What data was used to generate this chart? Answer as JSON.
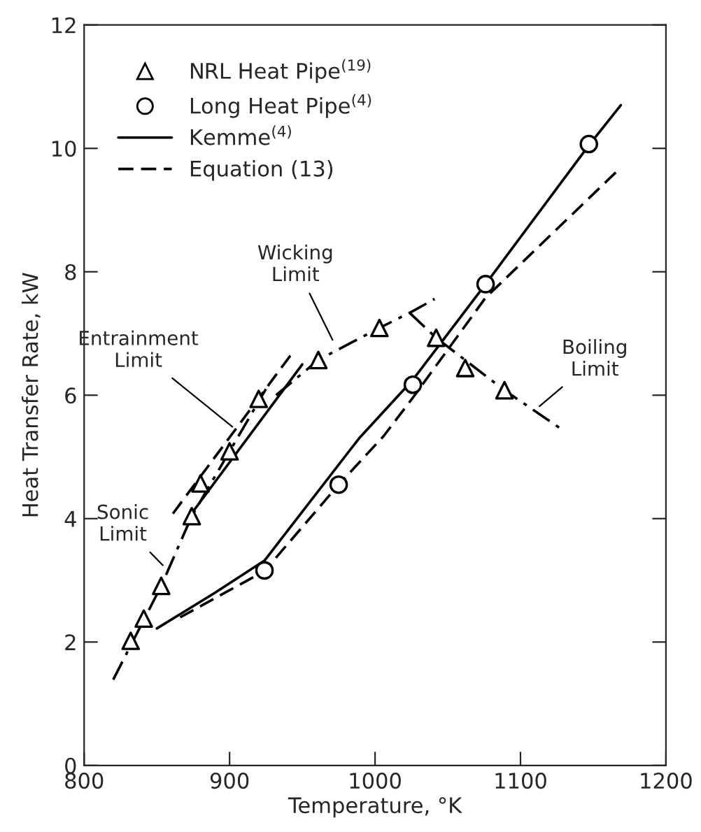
{
  "chart_data": {
    "type": "scatter",
    "xlabel": "Temperature, °K",
    "ylabel": "Heat Transfer Rate, kW",
    "xlim": [
      800,
      1200
    ],
    "ylim": [
      0,
      12
    ],
    "xticks": [
      800,
      900,
      1000,
      1100,
      1200
    ],
    "yticks": [
      0,
      2,
      4,
      6,
      8,
      10,
      12
    ],
    "grid": false,
    "legend": "top left",
    "series": [
      {
        "name": "NRL Heat Pipe$^{(19)}$",
        "marker": "triangle",
        "color": "#000000",
        "x": [
          832,
          841,
          853,
          874,
          880,
          900,
          920,
          961,
          1003,
          1042,
          1062,
          1089
        ],
        "values": [
          2.02,
          2.38,
          2.91,
          4.04,
          4.57,
          5.09,
          5.94,
          6.57,
          7.09,
          6.93,
          6.44,
          6.08
        ]
      },
      {
        "name": "Long Heat Pipe$^{(4)}$",
        "marker": "circle",
        "color": "#000000",
        "x": [
          924,
          975,
          1026,
          1076,
          1147
        ],
        "values": [
          3.16,
          4.55,
          6.17,
          7.8,
          10.07
        ]
      },
      {
        "name": "Kemme$^{(4)}$",
        "type": "line",
        "line_style": "solid",
        "color": "#000000",
        "x": [
          850,
          890,
          924,
          989,
          1026,
          1076,
          1147,
          1169
        ],
        "values": [
          2.22,
          2.8,
          3.32,
          5.3,
          6.25,
          7.8,
          10.05,
          10.7
        ]
      },
      {
        "name": "Equation (13)",
        "type": "line",
        "line_style": "dashed",
        "color": "#000000",
        "x": [
          866,
          924,
          975,
          1006,
          1026,
          1076,
          1169
        ],
        "values": [
          2.4,
          3.15,
          4.55,
          5.34,
          5.96,
          7.58,
          9.69
        ]
      },
      {
        "type": "line",
        "line_style": "dashdot",
        "color": "#000000",
        "x": [
          820,
          853,
          874,
          900,
          925
        ],
        "values": [
          1.39,
          2.91,
          4.04,
          5.09,
          6.1
        ]
      },
      {
        "type": "line",
        "line_style": "dashed",
        "color": "#000000",
        "x": [
          861,
          943
        ],
        "values": [
          4.08,
          6.68
        ]
      },
      {
        "type": "line",
        "line_style": "solid",
        "color": "#000000",
        "x": [
          876,
          950
        ],
        "values": [
          4.15,
          6.5
        ]
      },
      {
        "type": "line",
        "line_style": "dashdot",
        "color": "#000000",
        "x": [
          932,
          961,
          1003,
          1025,
          1041
        ],
        "values": [
          6.0,
          6.57,
          7.09,
          7.35,
          7.56
        ]
      },
      {
        "type": "line",
        "line_style": "dashdot",
        "color": "#000000",
        "x": [
          1024,
          1042,
          1089,
          1130
        ],
        "values": [
          7.33,
          6.93,
          6.08,
          5.42
        ]
      }
    ],
    "annotations": [
      {
        "text": "Wicking\nLimit",
        "x": 972,
        "y": 6.84
      },
      {
        "text": "Entrainment\nLimit",
        "x": 904,
        "y": 5.45
      },
      {
        "text": "Sonic\nLimit",
        "x": 856,
        "y": 3.2
      },
      {
        "text": "Boiling\nLimit",
        "x": 1111,
        "y": 5.78
      }
    ]
  }
}
